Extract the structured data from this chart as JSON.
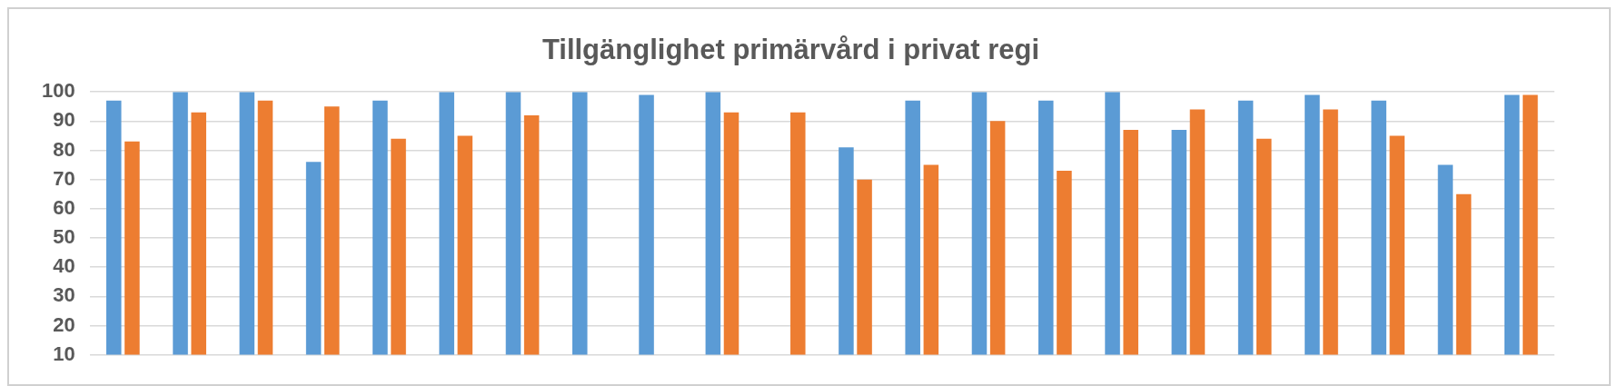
{
  "chart_data": {
    "type": "bar",
    "title": "Tillgänglighet primärvård i privat regi",
    "categories": [
      null,
      null,
      null,
      null,
      null,
      null,
      null,
      null,
      null,
      null,
      null,
      null,
      null,
      null,
      null,
      null,
      null,
      null,
      null,
      null,
      null,
      null
    ],
    "series": [
      {
        "color": "#5b9bd5",
        "values": [
          97,
          100,
          100,
          76,
          97,
          100,
          100,
          100,
          99,
          100,
          null,
          81,
          97,
          100,
          97,
          100,
          87,
          97,
          99,
          97,
          75,
          99
        ]
      },
      {
        "color": "#ed7d31",
        "values": [
          83,
          93,
          97,
          95,
          84,
          85,
          92,
          null,
          null,
          93,
          93,
          70,
          75,
          90,
          73,
          87,
          94,
          84,
          94,
          85,
          65,
          99
        ]
      }
    ],
    "ylim": [
      10,
      100
    ],
    "yticks": [
      10,
      20,
      30,
      40,
      50,
      60,
      70,
      80,
      90,
      100
    ],
    "grid": "y",
    "legend": false
  }
}
